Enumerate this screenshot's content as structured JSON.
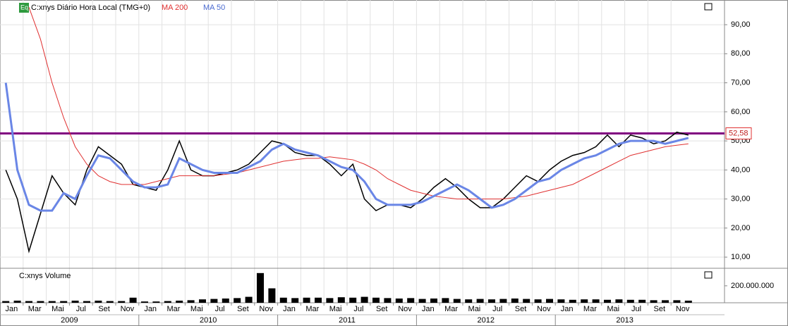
{
  "chart_data": {
    "type": "line",
    "title": "C:xnys Diário Hora Local (TMG+0)",
    "badge": "Eq",
    "volume_title": "C:xnys Volume",
    "x": [
      "2009-01",
      "2009-02",
      "2009-03",
      "2009-04",
      "2009-05",
      "2009-06",
      "2009-07",
      "2009-08",
      "2009-09",
      "2009-10",
      "2009-11",
      "2009-12",
      "2010-01",
      "2010-02",
      "2010-03",
      "2010-04",
      "2010-05",
      "2010-06",
      "2010-07",
      "2010-08",
      "2010-09",
      "2010-10",
      "2010-11",
      "2010-12",
      "2011-01",
      "2011-02",
      "2011-03",
      "2011-04",
      "2011-05",
      "2011-06",
      "2011-07",
      "2011-08",
      "2011-09",
      "2011-10",
      "2011-11",
      "2011-12",
      "2012-01",
      "2012-02",
      "2012-03",
      "2012-04",
      "2012-05",
      "2012-06",
      "2012-07",
      "2012-08",
      "2012-09",
      "2012-10",
      "2012-11",
      "2012-12",
      "2013-01",
      "2013-02",
      "2013-03",
      "2013-04",
      "2013-05",
      "2013-06",
      "2013-07",
      "2013-08",
      "2013-09",
      "2013-10",
      "2013-11",
      "2013-12"
    ],
    "series": [
      {
        "name": "C:xnys",
        "color": "#000000",
        "values": [
          40,
          30,
          12,
          25,
          38,
          32,
          28,
          40,
          48,
          45,
          42,
          35,
          34,
          33,
          40,
          50,
          40,
          38,
          38,
          39,
          40,
          42,
          46,
          50,
          49,
          46,
          45,
          45,
          42,
          38,
          42,
          30,
          26,
          28,
          28,
          27,
          30,
          34,
          37,
          34,
          30,
          27,
          27,
          30,
          34,
          38,
          36,
          40,
          43,
          45,
          46,
          48,
          52,
          48,
          52,
          51,
          49,
          50,
          53,
          52
        ]
      },
      {
        "name": "MA 200",
        "color": "#e03030",
        "values": [
          null,
          null,
          96,
          85,
          70,
          58,
          48,
          42,
          38,
          36,
          35,
          35,
          35,
          36,
          37,
          38,
          38,
          38,
          38,
          38.5,
          39,
          40,
          41,
          42,
          43,
          43.5,
          44,
          44,
          44.5,
          44,
          43.5,
          42,
          40,
          37,
          35,
          33,
          32,
          31,
          30.5,
          30,
          30,
          30,
          30,
          30,
          30.5,
          31,
          32,
          33,
          34,
          35,
          37,
          39,
          41,
          43,
          45,
          46,
          47,
          48,
          48.5,
          49
        ]
      },
      {
        "name": "MA 50",
        "color": "#6a86e6",
        "values": [
          70,
          40,
          28,
          26,
          26,
          32,
          30,
          38,
          45,
          44,
          40,
          36,
          34,
          34,
          35,
          44,
          42,
          40,
          39,
          39,
          39,
          41,
          43,
          47,
          49,
          47,
          46,
          45,
          43,
          41,
          40,
          36,
          30,
          28,
          28,
          28,
          29,
          31,
          33,
          35,
          33,
          30,
          27,
          28,
          30,
          33,
          36,
          37,
          40,
          42,
          44,
          45,
          47,
          49,
          50,
          50,
          50,
          49,
          50,
          51
        ]
      }
    ],
    "volume": [
      20000000,
      25000000,
      20000000,
      20000000,
      20000000,
      20000000,
      25000000,
      20000000,
      25000000,
      20000000,
      20000000,
      60000000,
      15000000,
      15000000,
      20000000,
      25000000,
      30000000,
      40000000,
      45000000,
      50000000,
      55000000,
      70000000,
      350000000,
      170000000,
      60000000,
      55000000,
      60000000,
      60000000,
      55000000,
      65000000,
      60000000,
      70000000,
      60000000,
      55000000,
      50000000,
      55000000,
      45000000,
      50000000,
      55000000,
      45000000,
      40000000,
      45000000,
      40000000,
      45000000,
      50000000,
      45000000,
      40000000,
      45000000,
      40000000,
      35000000,
      40000000,
      40000000,
      35000000,
      40000000,
      35000000,
      35000000,
      30000000,
      30000000,
      30000000,
      25000000
    ],
    "ylim": [
      6.4,
      98.5
    ],
    "yticks": [
      {
        "value": 10,
        "label": "10,00"
      },
      {
        "value": 20,
        "label": "20,00"
      },
      {
        "value": 30,
        "label": "30,00"
      },
      {
        "value": 40,
        "label": "40,00"
      },
      {
        "value": 50,
        "label": "50,00"
      },
      {
        "value": 60,
        "label": "60,00"
      },
      {
        "value": 70,
        "label": "70,00"
      },
      {
        "value": 80,
        "label": "80,00"
      },
      {
        "value": 90,
        "label": "90,00"
      }
    ],
    "volume_ylim": [
      0,
      390000000
    ],
    "volume_yticks": [
      {
        "value": 200000000,
        "label": "200.000.000"
      }
    ],
    "hlines": [
      {
        "value": 52.58,
        "label": "52,58",
        "color": "#800080"
      }
    ],
    "xticks": [
      {
        "value": "2009-01",
        "label": "Jan"
      },
      {
        "value": "2009-03",
        "label": "Mar"
      },
      {
        "value": "2009-05",
        "label": "Mai"
      },
      {
        "value": "2009-07",
        "label": "Jul"
      },
      {
        "value": "2009-09",
        "label": "Set"
      },
      {
        "value": "2009-11",
        "label": "Nov"
      },
      {
        "value": "2010-01",
        "label": "Jan"
      },
      {
        "value": "2010-03",
        "label": "Mar"
      },
      {
        "value": "2010-05",
        "label": "Mai"
      },
      {
        "value": "2010-07",
        "label": "Jul"
      },
      {
        "value": "2010-09",
        "label": "Set"
      },
      {
        "value": "2010-11",
        "label": "Nov"
      },
      {
        "value": "2011-01",
        "label": "Jan"
      },
      {
        "value": "2011-03",
        "label": "Mar"
      },
      {
        "value": "2011-05",
        "label": "Mai"
      },
      {
        "value": "2011-07",
        "label": "Jul"
      },
      {
        "value": "2011-09",
        "label": "Set"
      },
      {
        "value": "2011-11",
        "label": "Nov"
      },
      {
        "value": "2012-01",
        "label": "Jan"
      },
      {
        "value": "2012-03",
        "label": "Mar"
      },
      {
        "value": "2012-05",
        "label": "Mai"
      },
      {
        "value": "2012-07",
        "label": "Jul"
      },
      {
        "value": "2012-09",
        "label": "Set"
      },
      {
        "value": "2012-11",
        "label": "Nov"
      },
      {
        "value": "2013-01",
        "label": "Jan"
      },
      {
        "value": "2013-03",
        "label": "Mar"
      },
      {
        "value": "2013-05",
        "label": "Mai"
      },
      {
        "value": "2013-07",
        "label": "Jul"
      },
      {
        "value": "2013-09",
        "label": "Set"
      },
      {
        "value": "2013-11",
        "label": "Nov"
      }
    ],
    "years": [
      {
        "value": "2009-01",
        "label": "2009"
      },
      {
        "value": "2010-01",
        "label": "2010"
      },
      {
        "value": "2011-01",
        "label": "2011"
      },
      {
        "value": "2012-01",
        "label": "2012"
      },
      {
        "value": "2013-01",
        "label": "2013"
      }
    ],
    "grid": true
  }
}
